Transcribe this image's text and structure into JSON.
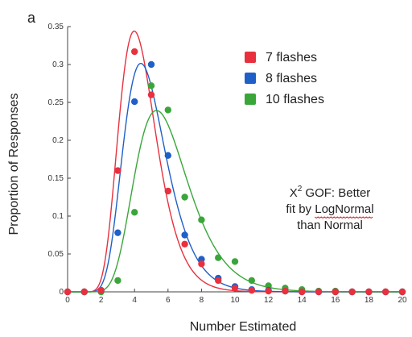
{
  "panel_label": "a",
  "chart_data": {
    "type": "scatter",
    "title": "",
    "xlabel": "Number Estimated",
    "ylabel": "Proportion of Responses",
    "xlim": [
      0,
      20
    ],
    "ylim": [
      0,
      0.35
    ],
    "xticks": [
      0,
      2,
      4,
      6,
      8,
      10,
      12,
      14,
      16,
      18,
      20
    ],
    "yticks": [
      0,
      0.05,
      0.1,
      0.15,
      0.2,
      0.25,
      0.3,
      0.35
    ],
    "ytick_labels": [
      "0",
      "0.05",
      "0.1",
      "0.15",
      "0.2",
      "0.25",
      "0.3",
      "0.35"
    ],
    "grid": false,
    "legend_position": "top-right",
    "series": [
      {
        "name": "7 flashes",
        "color": "#e8303e",
        "x": [
          0,
          1,
          2,
          3,
          4,
          5,
          6,
          7,
          8,
          9,
          10,
          11,
          12,
          13,
          14,
          15,
          16,
          17,
          18,
          19,
          20
        ],
        "y": [
          0,
          0,
          0.002,
          0.16,
          0.317,
          0.26,
          0.133,
          0.063,
          0.037,
          0.015,
          0.005,
          0.002,
          0.001,
          0.001,
          0,
          0,
          0,
          0,
          0,
          0,
          0
        ],
        "fit_mu": 1.46,
        "fit_sigma": 0.28
      },
      {
        "name": "8 flashes",
        "color": "#1f5fc8",
        "x": [
          0,
          1,
          2,
          3,
          4,
          5,
          6,
          7,
          8,
          9,
          10,
          11,
          12,
          13,
          14,
          15,
          16,
          17,
          18,
          19,
          20
        ],
        "y": [
          0,
          0,
          0.002,
          0.078,
          0.251,
          0.3,
          0.18,
          0.075,
          0.043,
          0.018,
          0.007,
          0.003,
          0.002,
          0.001,
          0,
          0,
          0,
          0,
          0,
          0,
          0
        ],
        "fit_mu": 1.56,
        "fit_sigma": 0.29
      },
      {
        "name": "10 flashes",
        "color": "#3aa63a",
        "x": [
          0,
          1,
          2,
          3,
          4,
          5,
          6,
          7,
          8,
          9,
          10,
          11,
          12,
          13,
          14,
          15,
          16,
          17,
          18,
          19,
          20
        ],
        "y": [
          0,
          0,
          0,
          0.015,
          0.105,
          0.272,
          0.24,
          0.125,
          0.095,
          0.045,
          0.04,
          0.015,
          0.008,
          0.005,
          0.003,
          0.001,
          0.001,
          0,
          0,
          0,
          0
        ],
        "fit_mu": 1.76,
        "fit_sigma": 0.3
      }
    ],
    "annotation": {
      "prefix": "X",
      "superscript": "2",
      "line1_rest": " GOF: Better",
      "line2_pre": "fit by ",
      "line2_link": "LogNormal",
      "line3": "than Normal"
    }
  }
}
